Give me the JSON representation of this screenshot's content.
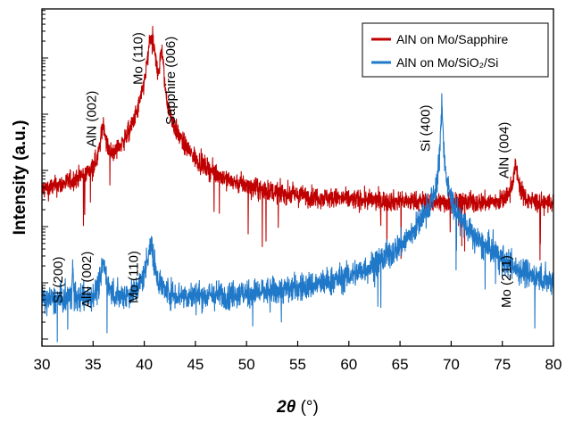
{
  "chart_data": {
    "type": "line",
    "title": "",
    "xlabel_main": "2θ",
    "xlabel_unit": " (°)",
    "ylabel": "Intensity (a.u.)",
    "xlim": [
      30,
      80
    ],
    "x_ticks": [
      30,
      35,
      40,
      45,
      50,
      55,
      60,
      65,
      70,
      75,
      80
    ],
    "y_scale": "log",
    "y_tick_labels_shown": false,
    "grid": false,
    "legend_position": "top-right",
    "series": [
      {
        "name": "AlN on Mo/Sapphire",
        "color": "#c00000",
        "baseline": 1,
        "noise": 0.25,
        "peaks": [
          {
            "x": 36.0,
            "height": 22,
            "width": 0.22
          },
          {
            "x": 40.7,
            "height": 1000,
            "width": 0.3
          },
          {
            "x": 41.7,
            "height": 500,
            "width": 0.15
          },
          {
            "x": 76.3,
            "height": 3.5,
            "width": 0.28
          }
        ]
      },
      {
        "name": "AlN on Mo/SiO₂/Si",
        "color": "#1f78c8",
        "baseline": 1,
        "noise": 0.35,
        "peaks": [
          {
            "x": 33.0,
            "height": 3,
            "width": 0.05
          },
          {
            "x": 36.0,
            "height": 4,
            "width": 0.25
          },
          {
            "x": 40.6,
            "height": 9,
            "width": 0.35
          },
          {
            "x": 69.1,
            "height": 3500,
            "width": 0.08
          },
          {
            "x": 69.0,
            "height": 60,
            "width": 1.6
          },
          {
            "x": 74.0,
            "height": 1.6,
            "width": 0.45
          }
        ]
      }
    ],
    "annotations": [
      {
        "text": "AlN (002)",
        "x": 35.3,
        "series": 0
      },
      {
        "text": "Mo (110)",
        "x": 39.8,
        "series": 0
      },
      {
        "text": "Sapphire (006)",
        "x": 43.0,
        "series": 0
      },
      {
        "text": "AlN (004)",
        "x": 75.6,
        "series": 0
      },
      {
        "text": "Si (400)",
        "x": 67.9,
        "series": 1
      },
      {
        "text": "Si (200)",
        "x": 32.0,
        "series": 1
      },
      {
        "text": "AlN (002)",
        "x": 34.8,
        "series": 1
      },
      {
        "text": "Mo (110)",
        "x": 39.4,
        "series": 1
      },
      {
        "text": "Mo (211)",
        "x": 75.8,
        "series": 1
      }
    ]
  }
}
